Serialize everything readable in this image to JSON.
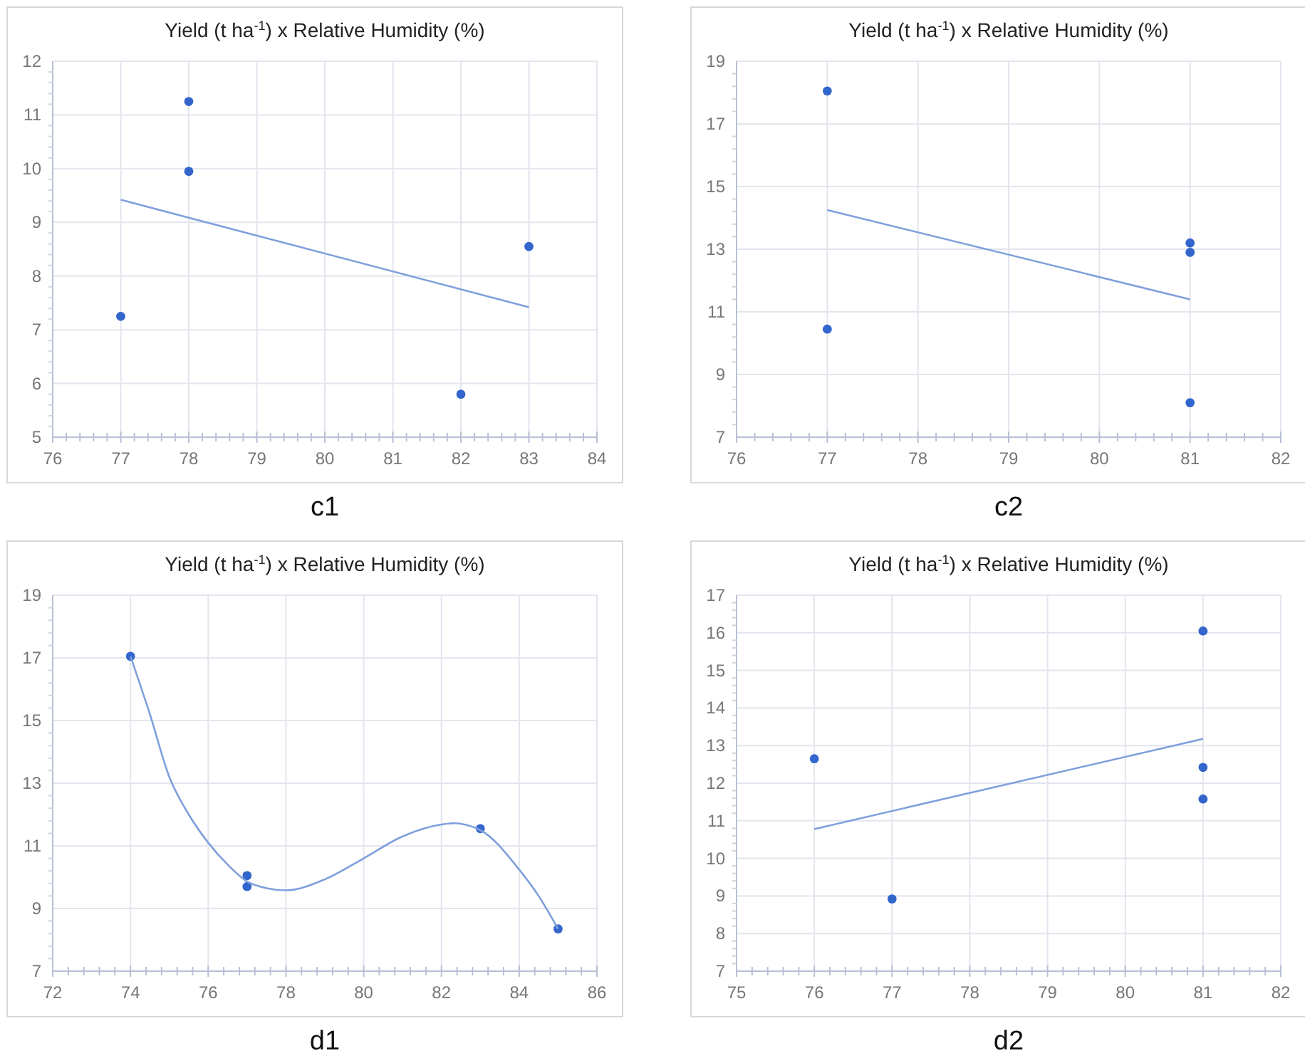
{
  "chart_data": [
    {
      "type": "scatter",
      "title": "Yield (t ha$^{-1}$) x Relative Humidity (%)",
      "annotations": [
        "c1"
      ],
      "xlim": [
        76,
        84
      ],
      "xticks": [
        76,
        77,
        78,
        79,
        80,
        81,
        82,
        83,
        84
      ],
      "ylim": [
        5,
        12
      ],
      "yticks": [
        5,
        6,
        7,
        8,
        9,
        10,
        11,
        12
      ],
      "grid": true,
      "series": [
        {
          "type": "scatter",
          "marker": "circle",
          "color": "#3366cc",
          "x": [
            77,
            78,
            78,
            82,
            83
          ],
          "values": [
            7.25,
            11.25,
            9.95,
            5.8,
            8.55
          ]
        },
        {
          "type": "line",
          "marker": "none",
          "color": "#7f9fdc",
          "x": [
            77,
            83
          ],
          "values": [
            9.42,
            7.42
          ]
        }
      ]
    },
    {
      "type": "scatter",
      "title": "Yield (t ha$^{-1}$) x Relative Humidity (%)",
      "annotations": [
        "c2"
      ],
      "xlim": [
        76,
        82
      ],
      "xticks": [
        76,
        77,
        78,
        79,
        80,
        81,
        82
      ],
      "ylim": [
        7,
        19
      ],
      "yticks": [
        7,
        9,
        11,
        13,
        15,
        17,
        19
      ],
      "grid": true,
      "series": [
        {
          "type": "scatter",
          "marker": "circle",
          "color": "#3366cc",
          "x": [
            77,
            77,
            81,
            81,
            81
          ],
          "values": [
            18.05,
            10.45,
            13.2,
            12.9,
            8.1
          ]
        },
        {
          "type": "line",
          "marker": "none",
          "color": "#7f9fdc",
          "x": [
            77,
            81
          ],
          "values": [
            14.25,
            11.4
          ]
        }
      ]
    },
    {
      "type": "scatter",
      "title": "Yield (t ha$^{-1}$) x Relative Humidity (%)",
      "annotations": [
        "d1"
      ],
      "xlim": [
        72,
        86
      ],
      "xticks": [
        72,
        74,
        76,
        78,
        80,
        82,
        84,
        86
      ],
      "ylim": [
        7,
        19
      ],
      "yticks": [
        7,
        9,
        11,
        13,
        15,
        17,
        19
      ],
      "grid": true,
      "series": [
        {
          "type": "scatter",
          "marker": "circle",
          "color": "#3366cc",
          "x": [
            74,
            77,
            77,
            83,
            85
          ],
          "values": [
            17.05,
            10.05,
            9.7,
            11.55,
            8.35
          ]
        },
        {
          "type": "line",
          "marker": "none",
          "color": "#7f9fdc",
          "x": [
            74,
            74.5,
            75,
            75.5,
            76,
            76.5,
            77,
            77.5,
            78,
            79,
            80,
            81,
            82,
            82.3,
            83,
            84,
            84.5,
            85
          ],
          "values": [
            17.05,
            15.2,
            13.2,
            12.0,
            11.1,
            10.4,
            9.86,
            9.65,
            9.58,
            9.93,
            10.6,
            11.3,
            11.68,
            11.72,
            11.5,
            10.24,
            9.4,
            8.35
          ]
        }
      ]
    },
    {
      "type": "scatter",
      "title": "Yield (t ha$^{-1}$) x Relative Humidity (%)",
      "annotations": [
        "d2"
      ],
      "xlim": [
        75,
        82
      ],
      "xticks": [
        75,
        76,
        77,
        78,
        79,
        80,
        81,
        82
      ],
      "ylim": [
        7,
        17
      ],
      "yticks": [
        7,
        8,
        9,
        10,
        11,
        12,
        13,
        14,
        15,
        16,
        17
      ],
      "grid": true,
      "series": [
        {
          "type": "scatter",
          "marker": "circle",
          "color": "#3366cc",
          "x": [
            76,
            77,
            81,
            81,
            81
          ],
          "values": [
            12.65,
            8.92,
            16.05,
            12.42,
            11.58
          ]
        },
        {
          "type": "line",
          "marker": "none",
          "color": "#7f9fdc",
          "x": [
            76,
            81
          ],
          "values": [
            10.78,
            13.18
          ]
        }
      ]
    }
  ]
}
